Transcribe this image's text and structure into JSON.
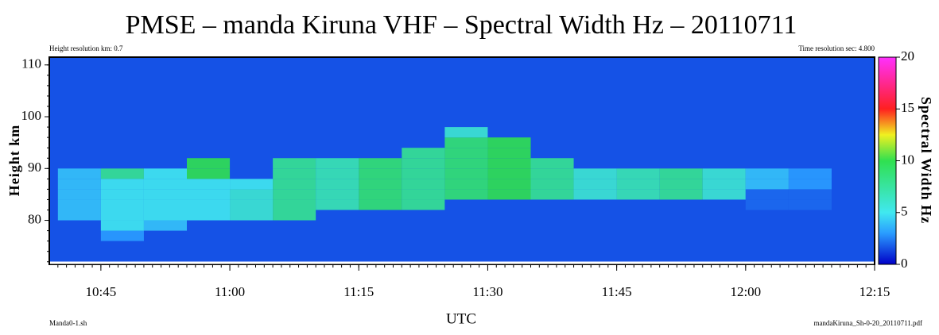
{
  "chart_data": {
    "type": "heatmap",
    "title": "PMSE – manda Kiruna VHF – Spectral Width Hz – 20110711",
    "note_left": "Height resolution km: 0.7",
    "note_right": "Time resolution sec: 4.800",
    "footer_left": "Manda0-1.sh",
    "footer_right": "mandaKiruna_Sh-0-20_20110711.pdf",
    "xlabel": "UTC",
    "ylabel": "Height km",
    "colorbar_label": "Spectral Width Hz",
    "xlim": [
      "10:39",
      "12:15"
    ],
    "xticks": [
      "10:45",
      "11:00",
      "11:15",
      "11:30",
      "11:45",
      "12:00",
      "12:15"
    ],
    "ylim": [
      71.5,
      111.5
    ],
    "yticks": [
      80,
      90,
      100,
      110
    ],
    "clim": [
      0,
      20
    ],
    "cticks": [
      0,
      5,
      10,
      15,
      20
    ],
    "background_color": "#1552e6",
    "colorscale": [
      {
        "value": 0,
        "color": "#0000c8"
      },
      {
        "value": 3,
        "color": "#2a9cff"
      },
      {
        "value": 5,
        "color": "#40e8f0"
      },
      {
        "value": 10,
        "color": "#30e050"
      },
      {
        "value": 12.5,
        "color": "#f0f020"
      },
      {
        "value": 15,
        "color": "#ff2020"
      },
      {
        "value": 20,
        "color": "#ff30ff"
      }
    ],
    "xbins": [
      "10:40",
      "10:45",
      "10:50",
      "10:55",
      "11:00",
      "11:05",
      "11:10",
      "11:15",
      "11:20",
      "11:25",
      "11:30",
      "11:35",
      "11:40",
      "11:45",
      "11:50",
      "11:55",
      "12:00",
      "12:05",
      "12:10",
      "12:15"
    ],
    "ybins": [
      76,
      78,
      80,
      82,
      84,
      86,
      88,
      90,
      92,
      94,
      96,
      98
    ],
    "values": [
      [
        null,
        3,
        null,
        null,
        null,
        null,
        null,
        null,
        null,
        null,
        null,
        null,
        null,
        null,
        null,
        null,
        null,
        null,
        null
      ],
      [
        null,
        5,
        4,
        null,
        null,
        null,
        null,
        null,
        null,
        null,
        null,
        null,
        null,
        null,
        null,
        null,
        null,
        null,
        null
      ],
      [
        4,
        5,
        5,
        5,
        6,
        8,
        null,
        null,
        null,
        null,
        null,
        null,
        null,
        null,
        null,
        null,
        null,
        null,
        null
      ],
      [
        4,
        5,
        5,
        5,
        6,
        8,
        7,
        9,
        8,
        null,
        null,
        null,
        null,
        null,
        null,
        null,
        2,
        2,
        null
      ],
      [
        4,
        5,
        5,
        5,
        6,
        8,
        7,
        9,
        8,
        9,
        10,
        8,
        6,
        7,
        8,
        6,
        2,
        2,
        null
      ],
      [
        4,
        5,
        5,
        5,
        5,
        8,
        7,
        9,
        8,
        9,
        10,
        8,
        6,
        7,
        8,
        6,
        4,
        3,
        null
      ],
      [
        4,
        8,
        5,
        10,
        null,
        8,
        7,
        9,
        8,
        9,
        10,
        8,
        6,
        7,
        8,
        6,
        4,
        3,
        null
      ],
      [
        null,
        null,
        null,
        10,
        null,
        8,
        7,
        9,
        8,
        9,
        10,
        8,
        null,
        null,
        null,
        null,
        null,
        null,
        null
      ],
      [
        null,
        null,
        null,
        null,
        null,
        null,
        null,
        null,
        8,
        9,
        10,
        null,
        null,
        null,
        null,
        null,
        null,
        null,
        null
      ],
      [
        null,
        null,
        null,
        null,
        null,
        null,
        null,
        null,
        null,
        9,
        10,
        null,
        null,
        null,
        null,
        null,
        null,
        null,
        null
      ],
      [
        null,
        null,
        null,
        null,
        null,
        null,
        null,
        null,
        null,
        6,
        null,
        null,
        null,
        null,
        null,
        null,
        null,
        null,
        null
      ]
    ]
  }
}
